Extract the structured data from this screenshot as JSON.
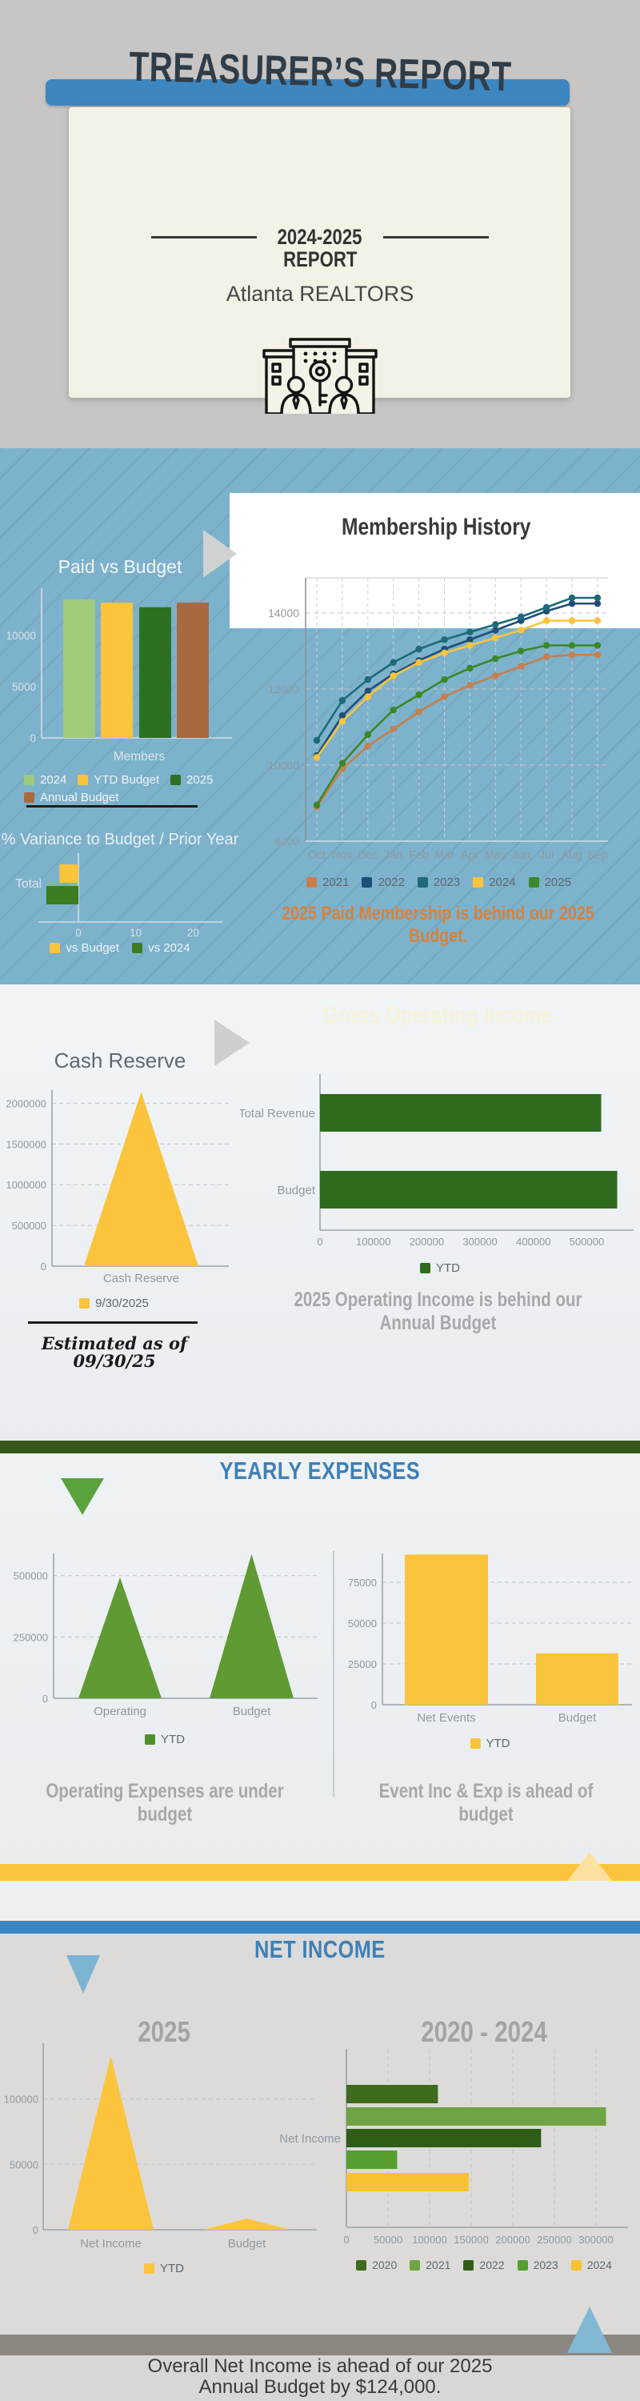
{
  "page_title": "Treasurer's Report",
  "header": {
    "title": "TREASURER’S REPORT",
    "period": "2024-2025",
    "report_label": "REPORT",
    "organization": "Atlanta REALTORS",
    "icon": "buildings-people-key-icon"
  },
  "chart_data": {
    "paid_vs_budget": {
      "type": "bar",
      "title": "Paid vs Budget",
      "xlabel": "Members",
      "categories": [
        "2024",
        "YTD Budget",
        "2025",
        "Annual Budget"
      ],
      "values": [
        13500,
        13200,
        12750,
        13200
      ],
      "colors": [
        "#9fcb7b",
        "#fbc43c",
        "#2d7021",
        "#a8693f"
      ],
      "yticks": [
        0,
        5000,
        10000
      ],
      "ymax": 14600,
      "legend": [
        {
          "label": "2024",
          "color": "#9fcb7b"
        },
        {
          "label": "YTD Budget",
          "color": "#fbc43c"
        },
        {
          "label": "2025",
          "color": "#2d7021"
        },
        {
          "label": "Annual Budget",
          "color": "#a8693f"
        }
      ]
    },
    "variance": {
      "type": "hbar",
      "title": "% Variance to Budget / Prior Year",
      "categories": [
        "Total"
      ],
      "series": [
        {
          "name": "vs Budget",
          "value": -3.3,
          "color": "#fbc43c"
        },
        {
          "name": "vs 2024",
          "value": -5.6,
          "color": "#3c7d22"
        }
      ],
      "xticks": [
        0,
        10,
        20
      ],
      "xrange": [
        -7,
        25
      ],
      "legend": [
        {
          "label": "vs Budget",
          "color": "#fbc43c"
        },
        {
          "label": "vs 2024",
          "color": "#3c7d22"
        }
      ]
    },
    "membership_history": {
      "type": "line",
      "title": "Membership History",
      "caption": "2025 Paid Membership is behind our 2025 Budget.",
      "x": [
        "Oct",
        "Nov",
        "Dec",
        "Jan",
        "Feb",
        "Mar",
        "Apr",
        "May",
        "Jun",
        "Jul",
        "Aug",
        "Sep"
      ],
      "yticks": [
        8000,
        10000,
        12000,
        14000
      ],
      "ylim": [
        8000,
        15000
      ],
      "series": [
        {
          "name": "2021",
          "color": "#c5804e",
          "values": [
            8900,
            9900,
            10500,
            10950,
            11400,
            11800,
            12100,
            12350,
            12600,
            12850,
            12900,
            12900
          ]
        },
        {
          "name": "2022",
          "color": "#1f4e79",
          "values": [
            10250,
            11300,
            11950,
            12400,
            12750,
            13050,
            13300,
            13550,
            13800,
            14050,
            14250,
            14250
          ]
        },
        {
          "name": "2023",
          "color": "#1d6a7a",
          "values": [
            10650,
            11700,
            12250,
            12700,
            13050,
            13300,
            13500,
            13700,
            13900,
            14150,
            14400,
            14400
          ]
        },
        {
          "name": "2024",
          "color": "#fbc43c",
          "values": [
            10200,
            11150,
            11800,
            12350,
            12700,
            12950,
            13150,
            13350,
            13550,
            13800,
            13800,
            13800
          ]
        },
        {
          "name": "2025",
          "color": "#3e8629",
          "values": [
            8950,
            10050,
            10800,
            11450,
            11850,
            12250,
            12550,
            12800,
            13000,
            13150,
            13150,
            13150
          ]
        }
      ],
      "legend": [
        {
          "label": "2021",
          "color": "#c5804e"
        },
        {
          "label": "2022",
          "color": "#1f4e79"
        },
        {
          "label": "2023",
          "color": "#1d6a7a"
        },
        {
          "label": "2024",
          "color": "#fbc43c"
        },
        {
          "label": "2025",
          "color": "#3e8629"
        }
      ]
    },
    "cash_reserve": {
      "type": "area-triangle",
      "title": "Cash Reserve",
      "xlabel": "Cash Reserve",
      "categories": [
        "Cash Reserve"
      ],
      "values": [
        2140000
      ],
      "color": "#fbc43c",
      "yticks": [
        0,
        500000,
        1000000,
        1500000,
        2000000
      ],
      "ymax": 2240000,
      "note_line1": "Estimated as of",
      "note_line2": "09/30/25",
      "legend": [
        {
          "label": "9/30/2025",
          "color": "#fbc43c"
        }
      ]
    },
    "gross_operating_income": {
      "type": "hbar",
      "title": "Gross Operating Income",
      "caption": "2025 Operating Income is behind our Annual Budget",
      "categories": [
        "Total Revenue",
        "Budget"
      ],
      "values": [
        527000,
        557000
      ],
      "color": "#2e6b1d",
      "xticks": [
        0,
        100000,
        200000,
        300000,
        400000,
        500000
      ],
      "xmax": 585000,
      "legend": [
        {
          "label": "YTD",
          "color": "#2e6b1d"
        }
      ]
    },
    "operating_expenses": {
      "type": "area-triangle",
      "caption": "Operating Expenses are under budget",
      "categories": [
        "Operating",
        "Budget"
      ],
      "values": [
        493000,
        588000
      ],
      "color": "#5f9a33",
      "yticks": [
        0,
        250000,
        500000
      ],
      "ymax": 625000,
      "legend": [
        {
          "label": "YTD",
          "color": "#4f8f2a"
        }
      ]
    },
    "net_events": {
      "type": "bar",
      "caption": "Event Inc & Exp is ahead of budget",
      "categories": [
        "Net Events",
        "Budget"
      ],
      "values": [
        92000,
        31500
      ],
      "color": "#fbc43c",
      "yticks": [
        0,
        25000,
        50000,
        75000
      ],
      "ymax": 98000,
      "legend": [
        {
          "label": "YTD",
          "color": "#fbc43c"
        }
      ]
    },
    "net_income_2025": {
      "type": "area-triangle",
      "title": "2025",
      "categories": [
        "Net Income",
        "Budget"
      ],
      "values": [
        133000,
        8500
      ],
      "color": "#fbc43c",
      "yticks": [
        0,
        50000,
        100000
      ],
      "ymax": 154000,
      "legend": [
        {
          "label": "YTD",
          "color": "#fbc43c"
        }
      ]
    },
    "net_income_2020_2024": {
      "type": "hbar-multi",
      "title": "2020 - 2024",
      "category_label": "Net Income",
      "series": [
        {
          "name": "2020",
          "value": 110000,
          "color": "#3e6b1e"
        },
        {
          "name": "2021",
          "value": 312000,
          "color": "#6fa445"
        },
        {
          "name": "2022",
          "value": 234000,
          "color": "#2f5c17"
        },
        {
          "name": "2023",
          "value": 61000,
          "color": "#579e30"
        },
        {
          "name": "2024",
          "value": 147000,
          "color": "#f7c133"
        }
      ],
      "xticks": [
        0,
        50000,
        100000,
        150000,
        200000,
        250000,
        300000
      ],
      "xmax": 320000,
      "legend": [
        {
          "label": "2020",
          "color": "#3e6b1e"
        },
        {
          "label": "2021",
          "color": "#6fa445"
        },
        {
          "label": "2022",
          "color": "#2f5c17"
        },
        {
          "label": "2023",
          "color": "#579e30"
        },
        {
          "label": "2024",
          "color": "#f7c133"
        }
      ]
    }
  },
  "expenses_section": {
    "title": "YEARLY EXPENSES"
  },
  "net_income_section": {
    "title": "NET INCOME"
  },
  "footer": {
    "line1": "Overall Net Income is ahead of our 2025",
    "line2": "Annual Budget by $124,000."
  }
}
